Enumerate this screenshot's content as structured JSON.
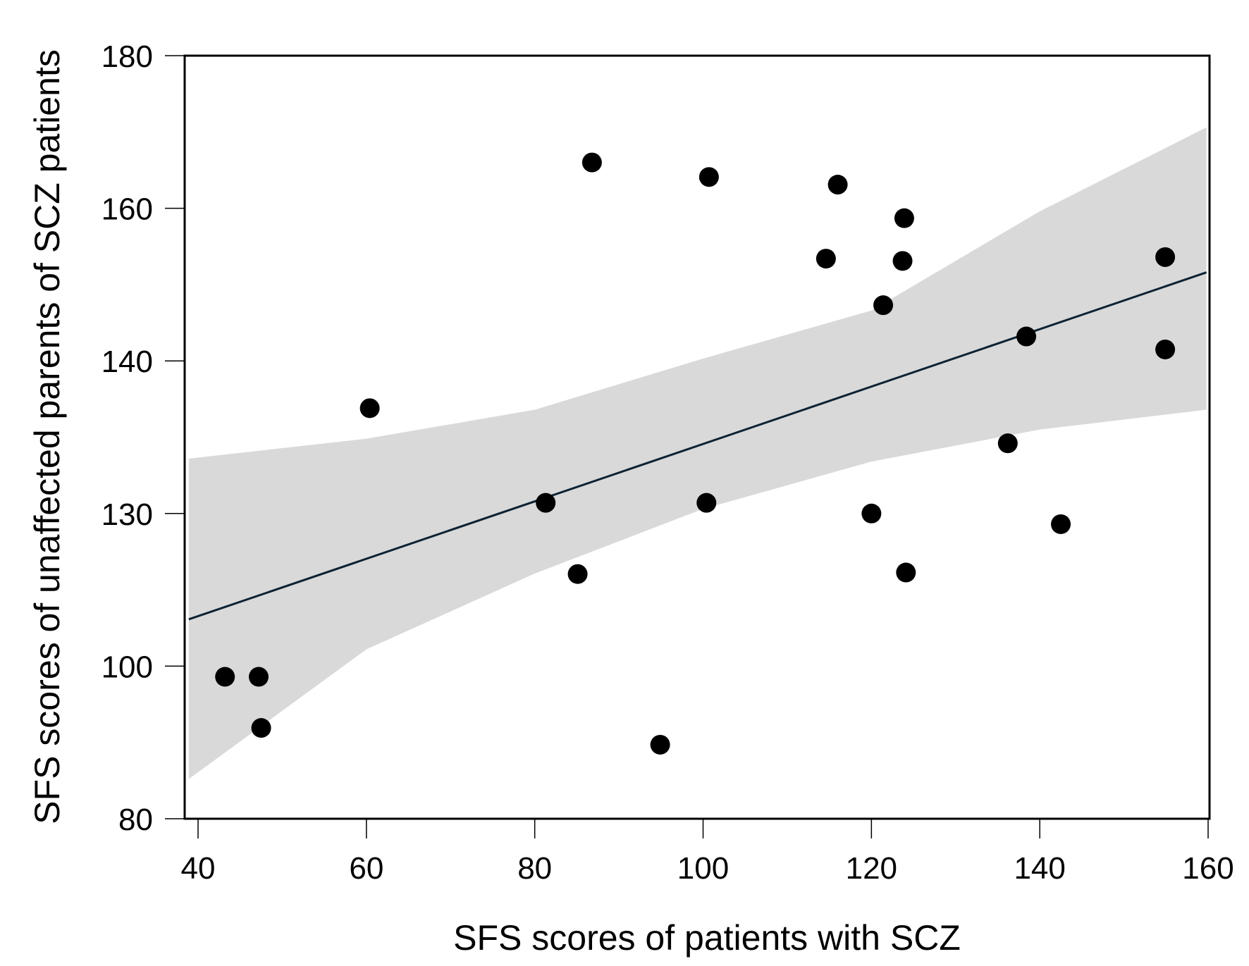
{
  "chart_data": {
    "type": "scatter",
    "title": "",
    "xlabel": "SFS scores of patients with SCZ",
    "ylabel": "SFS scores of unaffected parents of SCZ patients",
    "xlim": [
      38.3,
      160.3
    ],
    "ylim": [
      80,
      180
    ],
    "xticks": [
      40,
      60,
      80,
      100,
      120,
      140,
      160
    ],
    "yticks": [
      80,
      100,
      130,
      140,
      160,
      180
    ],
    "grid": false,
    "legend": "none",
    "colors": {
      "points": "#000000",
      "line": "#0d2233",
      "band": "#d9d9d9"
    },
    "points": [
      {
        "x": 43.2,
        "y": 98.6
      },
      {
        "x": 47.2,
        "y": 98.6
      },
      {
        "x": 47.5,
        "y": 91.9
      },
      {
        "x": 60.4,
        "y": 136.9
      },
      {
        "x": 81.3,
        "y": 130.7
      },
      {
        "x": 85.1,
        "y": 118.1
      },
      {
        "x": 86.8,
        "y": 166.0
      },
      {
        "x": 94.9,
        "y": 89.7
      },
      {
        "x": 100.4,
        "y": 130.7
      },
      {
        "x": 100.7,
        "y": 164.1
      },
      {
        "x": 114.6,
        "y": 153.4
      },
      {
        "x": 116.0,
        "y": 163.1
      },
      {
        "x": 120.0,
        "y": 130.0
      },
      {
        "x": 121.4,
        "y": 147.3
      },
      {
        "x": 123.7,
        "y": 153.1
      },
      {
        "x": 123.9,
        "y": 158.7
      },
      {
        "x": 124.1,
        "y": 118.4
      },
      {
        "x": 136.2,
        "y": 134.6
      },
      {
        "x": 138.4,
        "y": 143.2
      },
      {
        "x": 142.5,
        "y": 127.9
      },
      {
        "x": 154.9,
        "y": 153.6
      },
      {
        "x": 154.9,
        "y": 141.5
      }
    ],
    "fit_line": [
      {
        "x": 38.9,
        "y": 109.2
      },
      {
        "x": 159.8,
        "y": 151.6
      }
    ],
    "confidence_band": {
      "x": [
        38.9,
        60,
        80,
        100,
        120,
        140,
        159.8
      ],
      "upper": [
        133.6,
        134.9,
        136.8,
        140.3,
        146.6,
        159.6,
        170.6
      ],
      "lower": [
        85.2,
        103.3,
        118.2,
        130.3,
        133.4,
        135.5,
        136.8
      ]
    }
  }
}
